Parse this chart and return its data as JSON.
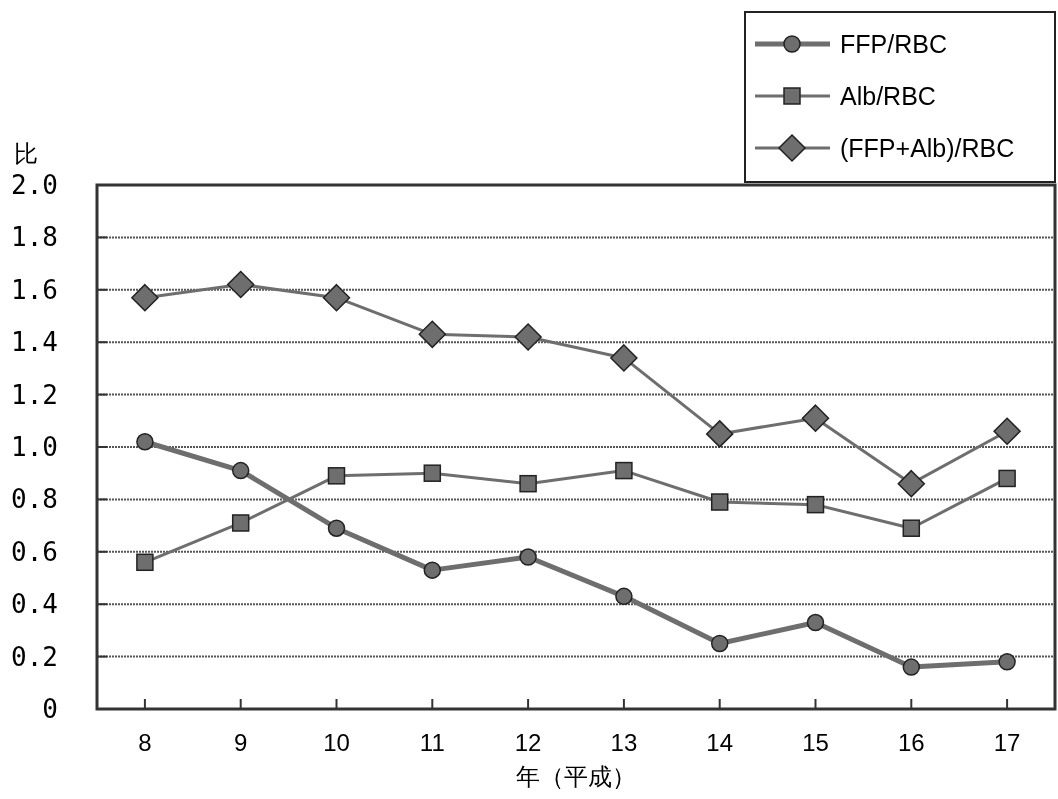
{
  "chart_data": {
    "type": "line",
    "xlabel": "年（平成）",
    "ylabel": "比",
    "categories": [
      "8",
      "9",
      "10",
      "11",
      "12",
      "13",
      "14",
      "15",
      "16",
      "17"
    ],
    "series": [
      {
        "name": "FFP/RBC",
        "color": "#6e6e6e",
        "marker": "circle",
        "values": [
          1.02,
          0.91,
          0.69,
          0.53,
          0.58,
          0.43,
          0.25,
          0.33,
          0.16,
          0.18
        ]
      },
      {
        "name": "Alb/RBC",
        "color": "#6e6e6e",
        "marker": "square",
        "values": [
          0.56,
          0.71,
          0.89,
          0.9,
          0.86,
          0.91,
          0.79,
          0.78,
          0.69,
          0.88
        ]
      },
      {
        "name": "(FFP+Alb)/RBC",
        "color": "#6e6e6e",
        "marker": "diamond",
        "values": [
          1.57,
          1.62,
          1.57,
          1.43,
          1.42,
          1.34,
          1.05,
          1.11,
          0.86,
          1.06
        ]
      }
    ],
    "ylim": [
      0,
      2
    ],
    "yticks": [
      0,
      {
        "value": 0.2,
        "label": "0.2"
      },
      {
        "value": 0.4,
        "label": "0.4"
      },
      {
        "value": 0.6,
        "label": "0.6"
      },
      {
        "value": 0.8,
        "label": "0.8"
      },
      {
        "value": 1,
        "label": "1.0"
      },
      {
        "value": 1.2,
        "label": "1.2"
      },
      {
        "value": 1.4,
        "label": "1.4"
      },
      {
        "value": 1.6,
        "label": "1.6"
      },
      {
        "value": 1.8,
        "label": "1.8"
      },
      {
        "value": 2,
        "label": "2.0"
      }
    ],
    "grid": "y",
    "legend": "top right",
    "line_style": "solid"
  }
}
